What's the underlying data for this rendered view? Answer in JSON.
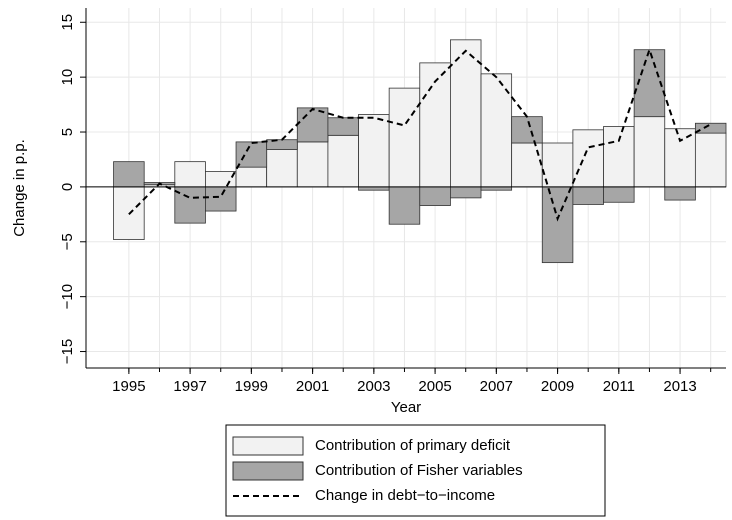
{
  "chart_data": {
    "type": "bar",
    "x_label": "Year",
    "y_label": "Change in p.p.",
    "x": [
      1995,
      1996,
      1997,
      1998,
      1999,
      2000,
      2001,
      2002,
      2003,
      2004,
      2005,
      2006,
      2007,
      2008,
      2009,
      2010,
      2011,
      2012,
      2013,
      2014
    ],
    "xlim": [
      1993.6,
      2014.5
    ],
    "xticks": [
      1995,
      1997,
      1999,
      2001,
      2003,
      2005,
      2007,
      2009,
      2011,
      2013
    ],
    "ylim": [
      -16.5,
      16.3
    ],
    "yticks": [
      {
        "value": -15,
        "label": "−15"
      },
      {
        "value": -10,
        "label": "−10"
      },
      {
        "value": -5,
        "label": "−5"
      },
      0,
      5,
      10,
      15
    ],
    "grid": true,
    "stacked": true,
    "legend": "bottom",
    "series": [
      {
        "name": "Contribution of primary deficit",
        "type": "bar",
        "color": "#f2f2f2",
        "values": [
          -4.8,
          0.2,
          2.3,
          1.4,
          1.8,
          3.4,
          4.1,
          4.7,
          6.6,
          9.0,
          11.3,
          13.4,
          10.3,
          4.0,
          4.0,
          5.2,
          5.5,
          6.4,
          5.3,
          4.9
        ]
      },
      {
        "name": "Contribution of Fisher variables",
        "type": "bar",
        "color": "#a6a6a6",
        "values": [
          2.3,
          0.2,
          -3.3,
          -2.2,
          2.3,
          0.9,
          3.1,
          1.6,
          -0.3,
          -3.4,
          -1.7,
          -1.0,
          -0.3,
          2.4,
          -6.9,
          -1.6,
          -1.4,
          6.1,
          -1.2,
          0.9
        ]
      },
      {
        "name": "Change in debt−to−income",
        "type": "line",
        "color": "#000000",
        "dash": "6,4",
        "values": [
          -2.5,
          0.3,
          -1.0,
          -0.9,
          4.0,
          4.3,
          7.1,
          6.3,
          6.3,
          5.6,
          9.6,
          12.4,
          10.0,
          6.4,
          -2.9,
          3.6,
          4.2,
          12.5,
          4.2,
          5.7
        ]
      }
    ]
  }
}
